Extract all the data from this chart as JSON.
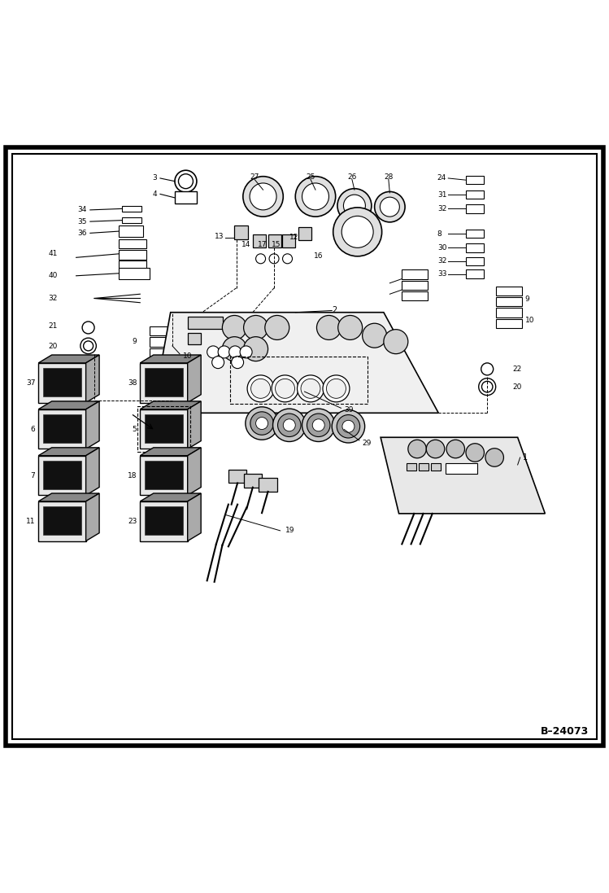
{
  "bg_color": "#ffffff",
  "border_color": "#000000",
  "line_color": "#000000",
  "fig_width": 7.49,
  "fig_height": 10.97,
  "dpi": 100,
  "watermark": "B-24073"
}
